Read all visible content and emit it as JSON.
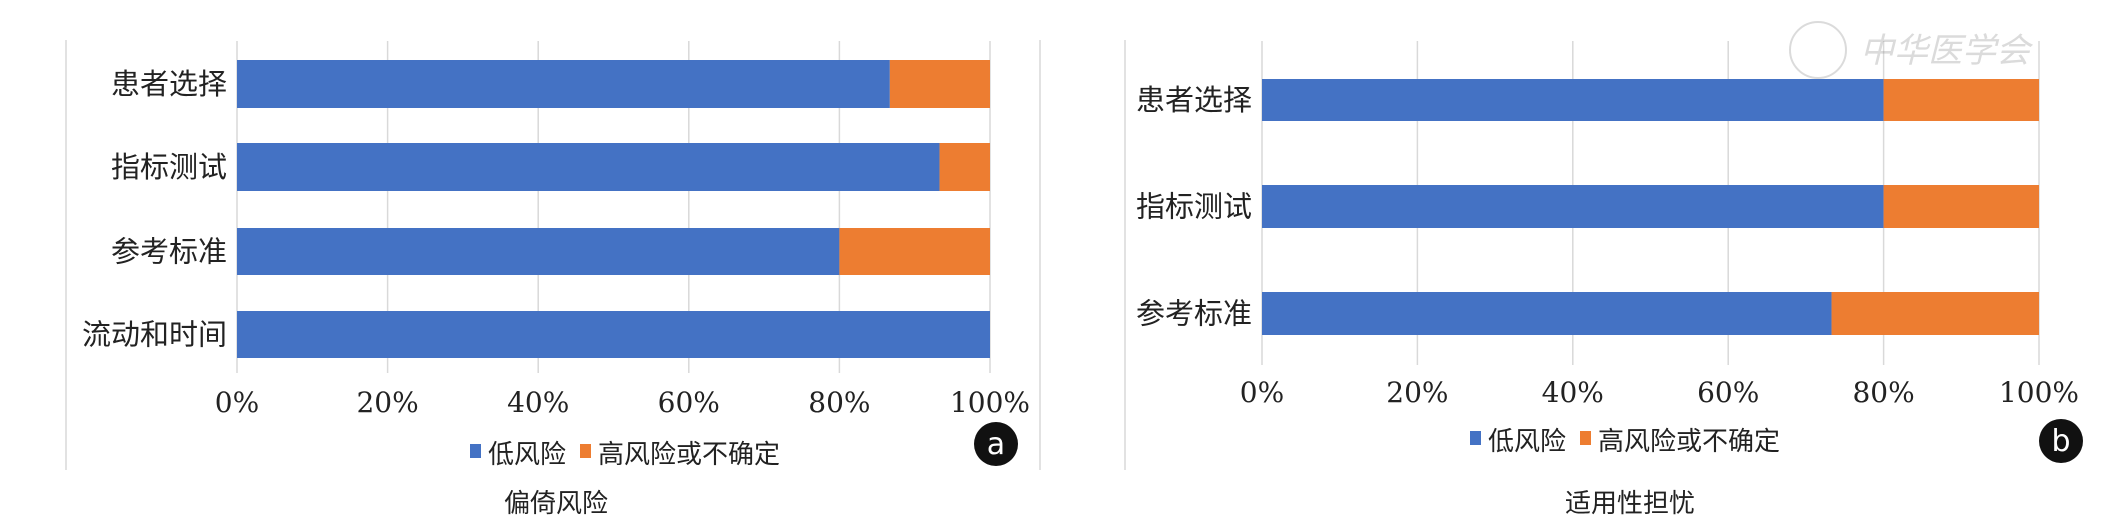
{
  "colors": {
    "low": "#4472C4",
    "high": "#ED7D31",
    "grid": "#d9d9d9"
  },
  "watermark": "中华医学会",
  "chart_data": [
    {
      "type": "bar",
      "stacked": true,
      "orientation": "horizontal",
      "panel_label": "a",
      "title": "偏倚风险",
      "categories": [
        "患者选择",
        "指标测试",
        "参考标准",
        "流动和时间"
      ],
      "series": [
        {
          "name": "低风险",
          "values": [
            86.7,
            93.3,
            80,
            100
          ]
        },
        {
          "name": "高风险或不确定",
          "values": [
            13.3,
            6.7,
            20,
            0
          ]
        }
      ],
      "xticks": [
        "0%",
        "20%",
        "40%",
        "60%",
        "80%",
        "100%"
      ],
      "xlim": [
        0,
        100
      ],
      "grid": true,
      "legend": "bottom"
    },
    {
      "type": "bar",
      "stacked": true,
      "orientation": "horizontal",
      "panel_label": "b",
      "title": "适用性担忧",
      "categories": [
        "患者选择",
        "指标测试",
        "参考标准"
      ],
      "series": [
        {
          "name": "低风险",
          "values": [
            80,
            80,
            73.3
          ]
        },
        {
          "name": "高风险或不确定",
          "values": [
            20,
            20,
            26.7
          ]
        }
      ],
      "xticks": [
        "0%",
        "20%",
        "40%",
        "60%",
        "80%",
        "100%"
      ],
      "xlim": [
        0,
        100
      ],
      "grid": true,
      "legend": "bottom"
    }
  ]
}
